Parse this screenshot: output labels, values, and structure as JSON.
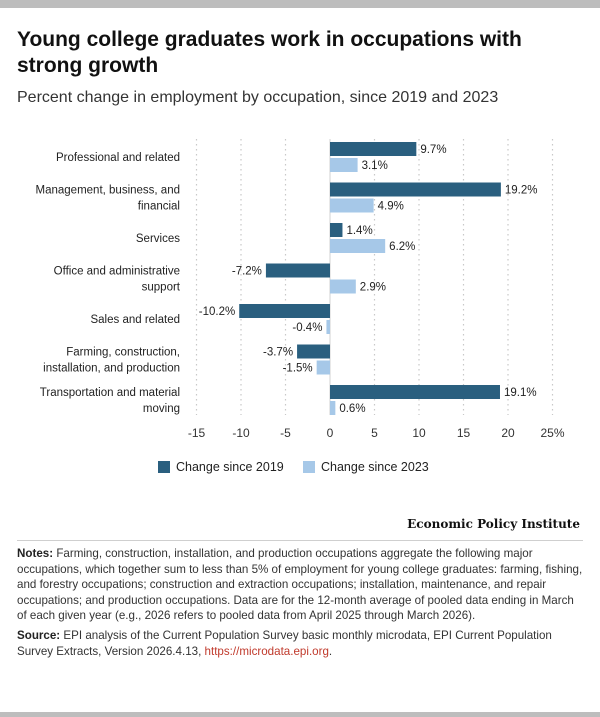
{
  "title": "Young college graduates work in occupations with strong growth",
  "subtitle": "Percent change in employment by occupation, since 2019 and 2023",
  "brand": "Economic Policy Institute",
  "notes": {
    "label": "Notes:",
    "text": "Farming, construction, installation, and production occupations aggregate the following major occupations, which together sum to less than 5% of employment for young college graduates: farming, fishing, and forestry occupations; construction and extraction occupations; installation, maintenance, and repair occupations; and production occupations. Data are for the 12-month average of pooled data ending in March of each given year (e.g., 2026 refers to pooled data from April 2025 through March 2026)."
  },
  "source": {
    "label": "Source:",
    "text": "EPI analysis of the Current Population Survey basic monthly microdata, EPI Current Population Survey Extracts, Version 2026.4.13, ",
    "link": "https://microdata.epi.org",
    "end": "."
  },
  "chart_data": {
    "type": "bar",
    "orientation": "horizontal",
    "categories": [
      [
        "Professional and related"
      ],
      [
        "Management, business, and",
        "financial"
      ],
      [
        "Services"
      ],
      [
        "Office and administrative",
        "support"
      ],
      [
        "Sales and related"
      ],
      [
        "Farming, construction,",
        "installation, and production"
      ],
      [
        "Transportation and material",
        "moving"
      ]
    ],
    "series": [
      {
        "name": "Change since 2019",
        "color": "#2a5f7f",
        "values": [
          9.7,
          19.2,
          1.4,
          -7.2,
          -10.2,
          -3.7,
          19.1
        ],
        "labels": [
          "9.7%",
          "19.2%",
          "1.4%",
          "-7.2%",
          "-10.2%",
          "-3.7%",
          "19.1%"
        ]
      },
      {
        "name": "Change since 2023",
        "color": "#a6c8e8",
        "values": [
          3.1,
          4.9,
          6.2,
          2.9,
          -0.4,
          -1.5,
          0.6
        ],
        "labels": [
          "3.1%",
          "4.9%",
          "6.2%",
          "2.9%",
          "-0.4%",
          "-1.5%",
          "0.6%"
        ]
      }
    ],
    "xlim": [
      -15,
      25
    ],
    "xticks": [
      "-15",
      "-10",
      "-5",
      "0",
      "5",
      "10",
      "15",
      "20",
      "25%"
    ],
    "xtick_values": [
      -15,
      -10,
      -5,
      0,
      5,
      10,
      15,
      20,
      25
    ],
    "grid": true,
    "legend": "bottom-center"
  }
}
